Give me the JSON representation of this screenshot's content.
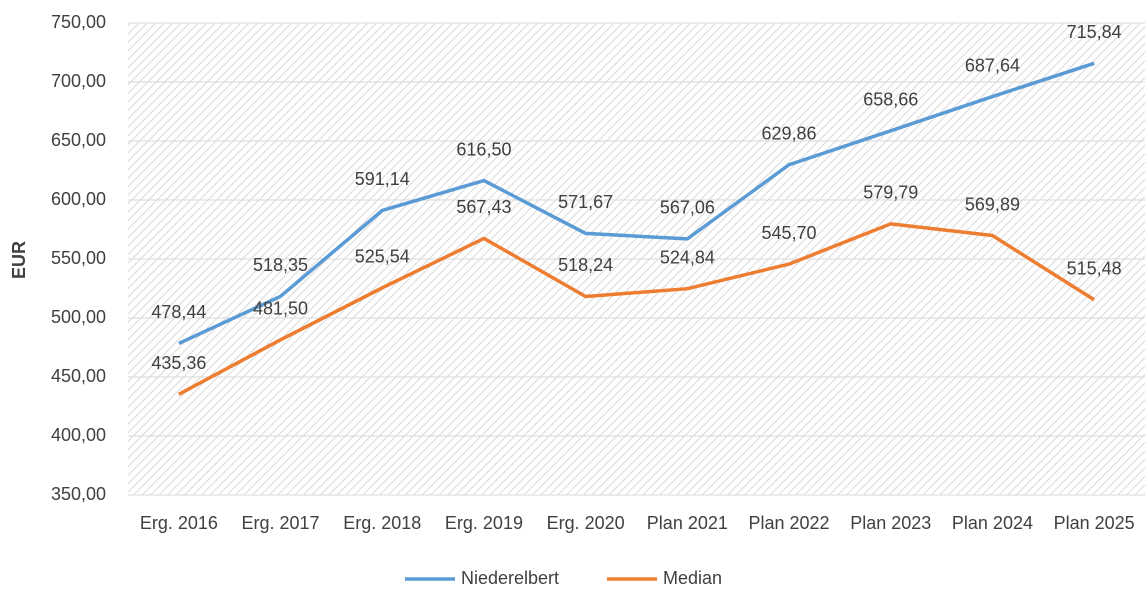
{
  "chart_data": {
    "type": "line",
    "y_label": "EUR",
    "categories": [
      "Erg. 2016",
      "Erg. 2017",
      "Erg. 2018",
      "Erg. 2019",
      "Erg. 2020",
      "Plan 2021",
      "Plan 2022",
      "Plan 2023",
      "Plan 2024",
      "Plan 2025"
    ],
    "series": [
      {
        "name": "Niederelbert",
        "color": "#5b9bd5",
        "values": [
          478.44,
          518.35,
          591.14,
          616.5,
          571.67,
          567.06,
          629.86,
          658.66,
          687.64,
          715.84
        ],
        "value_labels": [
          "478,44",
          "518,35",
          "591,14",
          "616,50",
          "571,67",
          "567,06",
          "629,86",
          "658,66",
          "687,64",
          "715,84"
        ]
      },
      {
        "name": "Median",
        "color": "#ed7d31",
        "values": [
          435.36,
          481.5,
          525.54,
          567.43,
          518.24,
          524.84,
          545.7,
          579.79,
          569.89,
          515.48
        ],
        "value_labels": [
          "435,36",
          "481,50",
          "525,54",
          "567,43",
          "518,24",
          "524,84",
          "545,70",
          "579,79",
          "569,89",
          "515,48"
        ]
      }
    ],
    "ylim": [
      350,
      750
    ],
    "yticks": [
      {
        "value": 350,
        "label": "350,00"
      },
      {
        "value": 400,
        "label": "400,00"
      },
      {
        "value": 450,
        "label": "450,00"
      },
      {
        "value": 500,
        "label": "500,00"
      },
      {
        "value": 550,
        "label": "550,00"
      },
      {
        "value": 600,
        "label": "600,00"
      },
      {
        "value": 650,
        "label": "650,00"
      },
      {
        "value": 700,
        "label": "700,00"
      },
      {
        "value": 750,
        "label": "750,00"
      }
    ],
    "grid": true,
    "legend": "bottom"
  }
}
